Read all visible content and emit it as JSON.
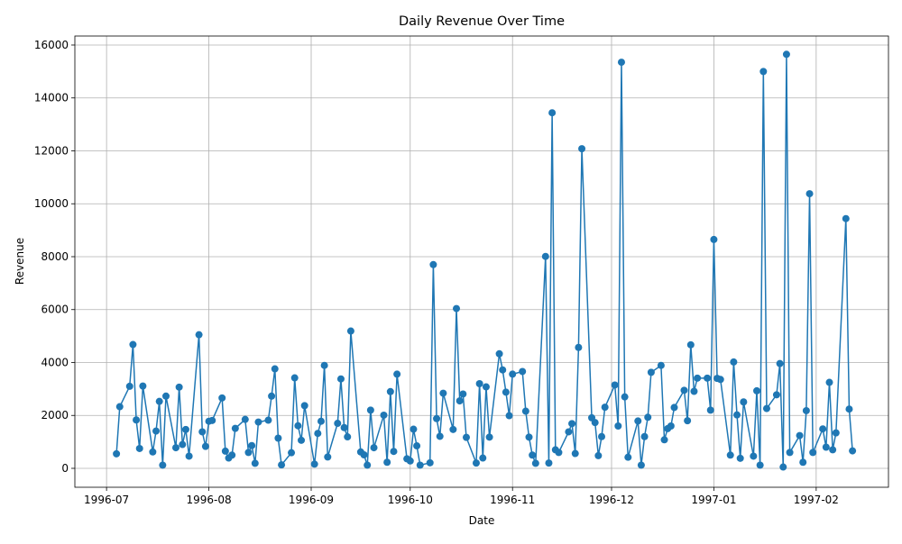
{
  "chart_data": {
    "type": "line",
    "title": "Daily Revenue Over Time",
    "x_label": "Date",
    "y_label": "Revenue",
    "x": [
      9681,
      9682,
      9685,
      9686,
      9687,
      9688,
      9689,
      9692,
      9693,
      9694,
      9695,
      9696,
      9699,
      9700,
      9701,
      9702,
      9703,
      9706,
      9707,
      9708,
      9709,
      9710,
      9713,
      9714,
      9715,
      9716,
      9717,
      9720,
      9721,
      9722,
      9723,
      9724,
      9727,
      9728,
      9729,
      9730,
      9731,
      9734,
      9735,
      9736,
      9737,
      9738,
      9741,
      9742,
      9743,
      9744,
      9745,
      9748,
      9749,
      9750,
      9751,
      9752,
      9755,
      9756,
      9757,
      9758,
      9759,
      9762,
      9763,
      9764,
      9765,
      9766,
      9769,
      9770,
      9771,
      9772,
      9773,
      9776,
      9777,
      9778,
      9779,
      9780,
      9783,
      9784,
      9785,
      9786,
      9787,
      9790,
      9791,
      9792,
      9793,
      9794,
      9797,
      9798,
      9799,
      9800,
      9801,
      9804,
      9805,
      9806,
      9807,
      9808,
      9811,
      9812,
      9813,
      9814,
      9815,
      9818,
      9819,
      9820,
      9821,
      9822,
      9825,
      9826,
      9827,
      9828,
      9829,
      9832,
      9833,
      9834,
      9835,
      9836,
      9839,
      9840,
      9841,
      9842,
      9843,
      9846,
      9847,
      9848,
      9849,
      9850,
      9853,
      9854,
      9855,
      9856,
      9857,
      9860,
      9861,
      9862,
      9863,
      9864,
      9867,
      9868,
      9869,
      9870,
      9871,
      9874,
      9875,
      9876,
      9877,
      9878,
      9881,
      9882,
      9883,
      9884,
      9885,
      9888,
      9889,
      9890,
      9891,
      9892,
      9895,
      9896,
      9897,
      9898,
      9899,
      9902,
      9903,
      9904
    ],
    "series": [
      {
        "name": "Revenue",
        "color": "#1f77b4",
        "values": [
          550,
          2330,
          3100,
          4680,
          1830,
          750,
          3110,
          620,
          1410,
          2530,
          120,
          2730,
          780,
          3070,
          900,
          1470,
          460,
          5050,
          1380,
          830,
          1780,
          1810,
          2660,
          650,
          390,
          500,
          1510,
          1850,
          600,
          860,
          190,
          1750,
          1820,
          2730,
          3760,
          1140,
          130,
          590,
          3420,
          1610,
          1060,
          2370,
          160,
          1320,
          1780,
          3890,
          430,
          1700,
          3380,
          1540,
          1190,
          5190,
          620,
          510,
          120,
          2200,
          780,
          2010,
          230,
          2900,
          640,
          3560,
          360,
          280,
          1480,
          850,
          120,
          210,
          7700,
          1880,
          1210,
          2840,
          1470,
          6040,
          2550,
          2810,
          1170,
          200,
          3200,
          390,
          3080,
          1180,
          4330,
          3720,
          2880,
          1990,
          3560,
          3660,
          2160,
          1180,
          500,
          190,
          8010,
          200,
          13440,
          700,
          600,
          1380,
          1690,
          560,
          4570,
          12080,
          1910,
          1730,
          480,
          1200,
          2310,
          3150,
          1600,
          15350,
          2700,
          420,
          1790,
          120,
          1200,
          1930,
          3630,
          3890,
          1080,
          1500,
          1600,
          2300,
          2950,
          1800,
          4670,
          2910,
          3410,
          3410,
          2200,
          8650,
          3400,
          3360,
          500,
          4020,
          2020,
          380,
          2510,
          460,
          2930,
          120,
          15000,
          2260,
          2780,
          3960,
          50,
          15650,
          600,
          1240,
          230,
          2180,
          10380,
          600,
          1490,
          800,
          3250,
          700,
          1340,
          9440,
          2240,
          660
        ]
      }
    ],
    "xlim": [
      9668.4,
      9914.9
    ],
    "xticks": [
      {
        "value": 9678,
        "label": "1996-07"
      },
      {
        "value": 9709,
        "label": "1996-08"
      },
      {
        "value": 9740,
        "label": "1996-09"
      },
      {
        "value": 9770,
        "label": "1996-10"
      },
      {
        "value": 9801,
        "label": "1996-11"
      },
      {
        "value": 9831,
        "label": "1996-12"
      },
      {
        "value": 9862,
        "label": "1997-01"
      },
      {
        "value": 9893,
        "label": "1997-02"
      }
    ],
    "ylim": [
      -715,
      16340
    ],
    "yticks": [
      0,
      2000,
      4000,
      6000,
      8000,
      10000,
      12000,
      14000,
      16000
    ],
    "grid": true
  }
}
